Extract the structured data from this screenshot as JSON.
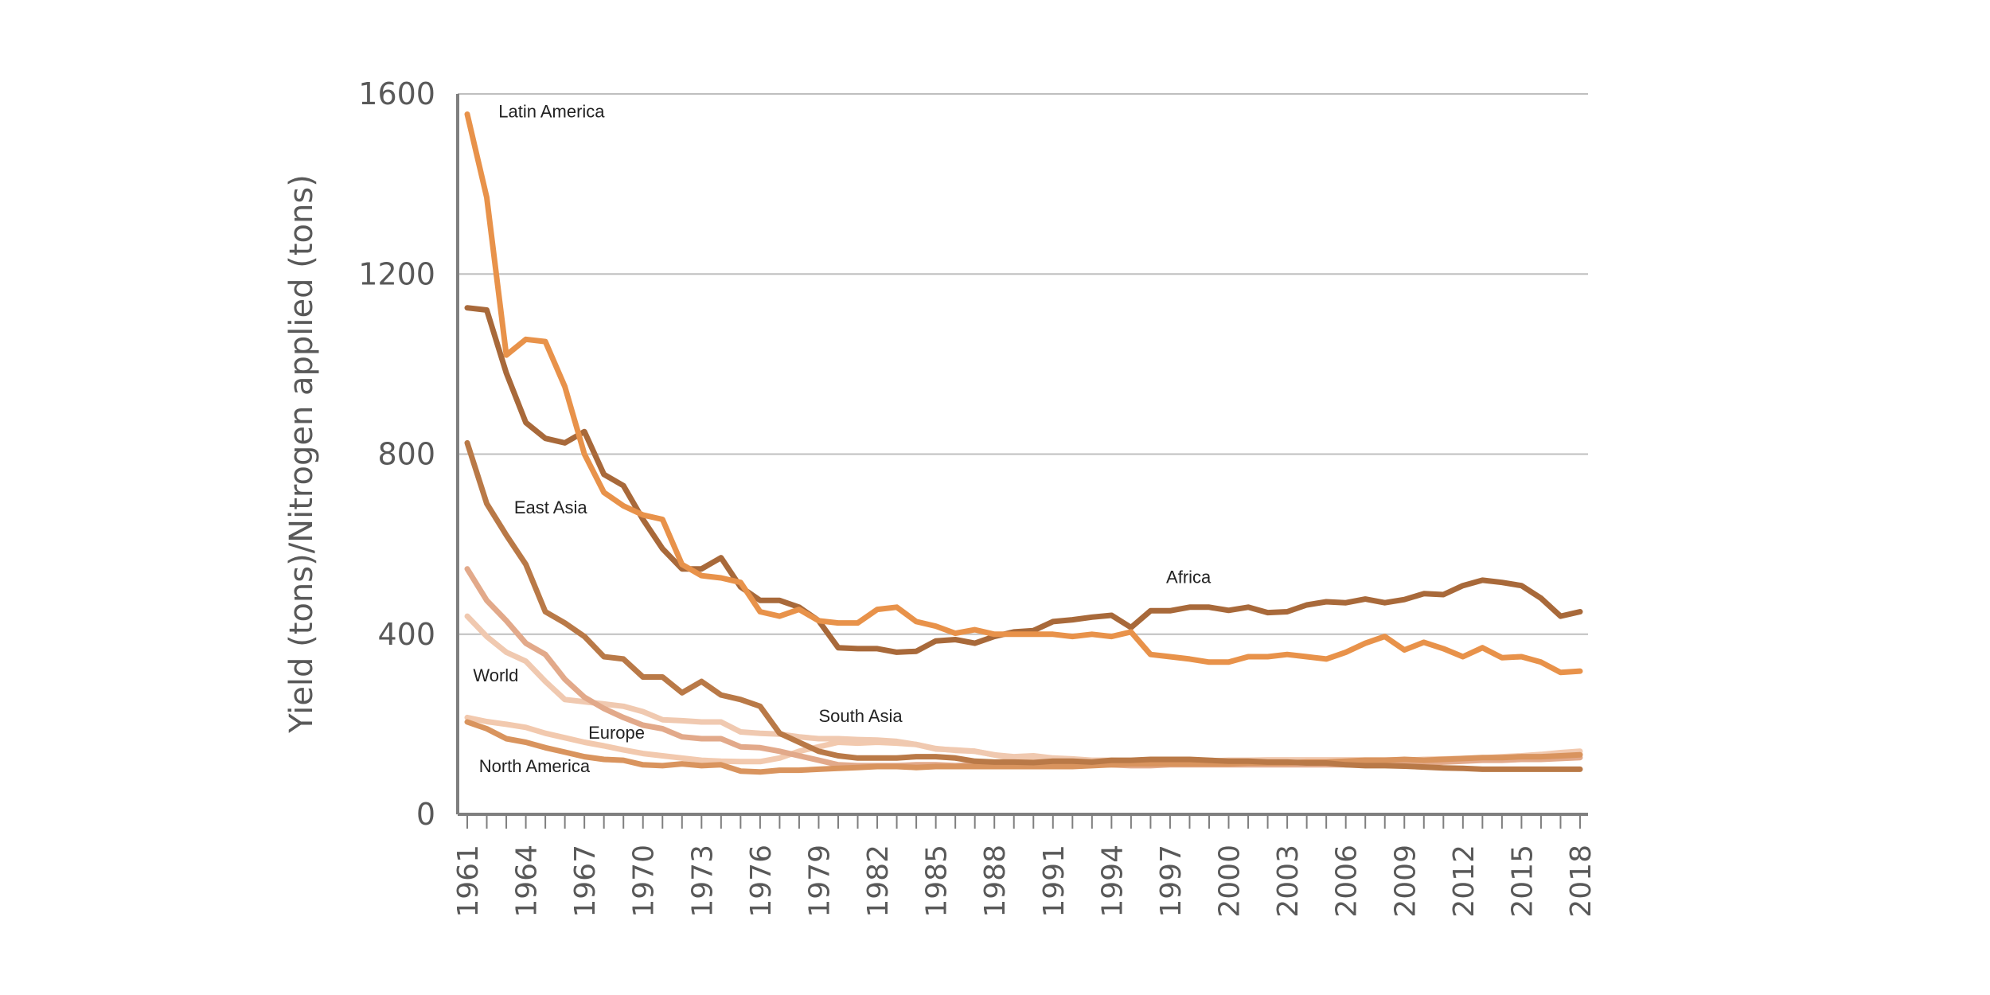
{
  "chart_data": {
    "type": "line",
    "ylabel": "Yield (tons)/Nitrogen applied (tons)",
    "xlabel": "",
    "ylim": [
      0,
      1600
    ],
    "y_ticks": [
      "0",
      "400",
      "800",
      "1200",
      "1600"
    ],
    "x_ticks": [
      "1961",
      "1964",
      "1967",
      "1970",
      "1973",
      "1976",
      "1979",
      "1982",
      "1985",
      "1988",
      "1991",
      "1994",
      "1997",
      "2000",
      "2003",
      "2006",
      "2009",
      "2012",
      "2015",
      "2018"
    ],
    "x_start": 1961,
    "x_end": 2018,
    "grid": "horizontal",
    "series": [
      {
        "name": "South Asia",
        "color": "#f2c9ae",
        "values": [
          215,
          206,
          200,
          193,
          180,
          170,
          160,
          152,
          143,
          135,
          130,
          125,
          120,
          118,
          117,
          117,
          125,
          140,
          150,
          160,
          158,
          160,
          158,
          155,
          146,
          142,
          140,
          132,
          124,
          120,
          120,
          120,
          118,
          117,
          118,
          116,
          116,
          114,
          114,
          113,
          113,
          114,
          115,
          117,
          118,
          118,
          119,
          120,
          120,
          122,
          123,
          124,
          125,
          128,
          130,
          133,
          137,
          140
        ]
      },
      {
        "name": "World",
        "color": "#f0c9b0",
        "values": [
          440,
          395,
          360,
          340,
          295,
          255,
          250,
          245,
          240,
          228,
          210,
          208,
          205,
          205,
          183,
          180,
          178,
          172,
          168,
          168,
          166,
          165,
          162,
          155,
          145,
          143,
          140,
          132,
          128,
          130,
          125,
          123,
          120,
          120,
          118,
          117,
          116,
          117,
          118,
          120,
          120,
          121,
          121,
          121,
          121,
          121,
          121,
          121,
          121,
          121,
          122,
          122,
          122,
          125,
          128,
          130,
          132,
          134
        ]
      },
      {
        "name": "Europe",
        "color": "#e2a98a",
        "values": [
          545,
          475,
          430,
          380,
          355,
          300,
          260,
          235,
          215,
          198,
          190,
          172,
          168,
          168,
          150,
          148,
          140,
          130,
          120,
          110,
          108,
          108,
          108,
          110,
          110,
          108,
          110,
          110,
          112,
          112,
          110,
          110,
          110,
          110,
          108,
          108,
          110,
          110,
          110,
          110,
          110,
          110,
          110,
          110,
          110,
          110,
          110,
          110,
          112,
          114,
          116,
          118,
          120,
          120,
          122,
          122,
          124,
          126
        ]
      },
      {
        "name": "North America",
        "color": "#d9945e",
        "values": [
          205,
          190,
          168,
          160,
          148,
          138,
          128,
          122,
          120,
          110,
          108,
          112,
          108,
          110,
          96,
          94,
          98,
          98,
          100,
          102,
          104,
          106,
          106,
          104,
          106,
          106,
          106,
          106,
          106,
          106,
          106,
          106,
          108,
          110,
          112,
          112,
          112,
          112,
          112,
          112,
          114,
          114,
          114,
          116,
          116,
          118,
          120,
          120,
          122,
          120,
          122,
          124,
          126,
          126,
          128,
          128,
          130,
          132
        ]
      },
      {
        "name": "Africa",
        "color": "#a8693a",
        "values": [
          1125,
          1120,
          980,
          870,
          835,
          825,
          850,
          755,
          730,
          655,
          590,
          545,
          545,
          570,
          505,
          475,
          475,
          460,
          430,
          370,
          368,
          368,
          360,
          362,
          385,
          388,
          380,
          395,
          405,
          408,
          428,
          432,
          438,
          442,
          415,
          452,
          452,
          460,
          460,
          453,
          460,
          448,
          450,
          465,
          472,
          470,
          478,
          470,
          477,
          490,
          488,
          508,
          520,
          515,
          508,
          480,
          440,
          450
        ]
      },
      {
        "name": "East Asia",
        "color": "#b97947",
        "values": [
          825,
          690,
          620,
          555,
          450,
          425,
          395,
          350,
          345,
          305,
          305,
          270,
          295,
          265,
          255,
          240,
          180,
          160,
          140,
          130,
          125,
          125,
          125,
          128,
          128,
          125,
          118,
          116,
          116,
          115,
          118,
          118,
          116,
          120,
          120,
          122,
          122,
          122,
          120,
          118,
          118,
          116,
          116,
          114,
          114,
          110,
          108,
          108,
          107,
          105,
          103,
          102,
          100,
          100,
          100,
          100,
          100,
          100
        ]
      },
      {
        "name": "Latin America",
        "color": "#e8924a",
        "values": [
          1555,
          1370,
          1020,
          1055,
          1050,
          950,
          800,
          715,
          685,
          665,
          655,
          555,
          530,
          525,
          515,
          450,
          440,
          455,
          430,
          425,
          425,
          455,
          460,
          428,
          418,
          402,
          410,
          400,
          400,
          400,
          400,
          395,
          400,
          395,
          405,
          355,
          350,
          345,
          338,
          338,
          350,
          350,
          355,
          350,
          345,
          360,
          380,
          395,
          365,
          382,
          368,
          350,
          370,
          348,
          350,
          338,
          315,
          318
        ]
      }
    ],
    "annotations": [
      {
        "text": "Latin America",
        "x": 1962.6,
        "y": 1548
      },
      {
        "text": "East Asia",
        "x": 1963.4,
        "y": 668
      },
      {
        "text": "World",
        "x": 1961.3,
        "y": 295
      },
      {
        "text": "Europe",
        "x": 1967.2,
        "y": 168
      },
      {
        "text": "North America",
        "x": 1961.6,
        "y": 94
      },
      {
        "text": "South Asia",
        "x": 1979.0,
        "y": 205
      },
      {
        "text": "Africa",
        "x": 1996.8,
        "y": 514
      }
    ]
  }
}
